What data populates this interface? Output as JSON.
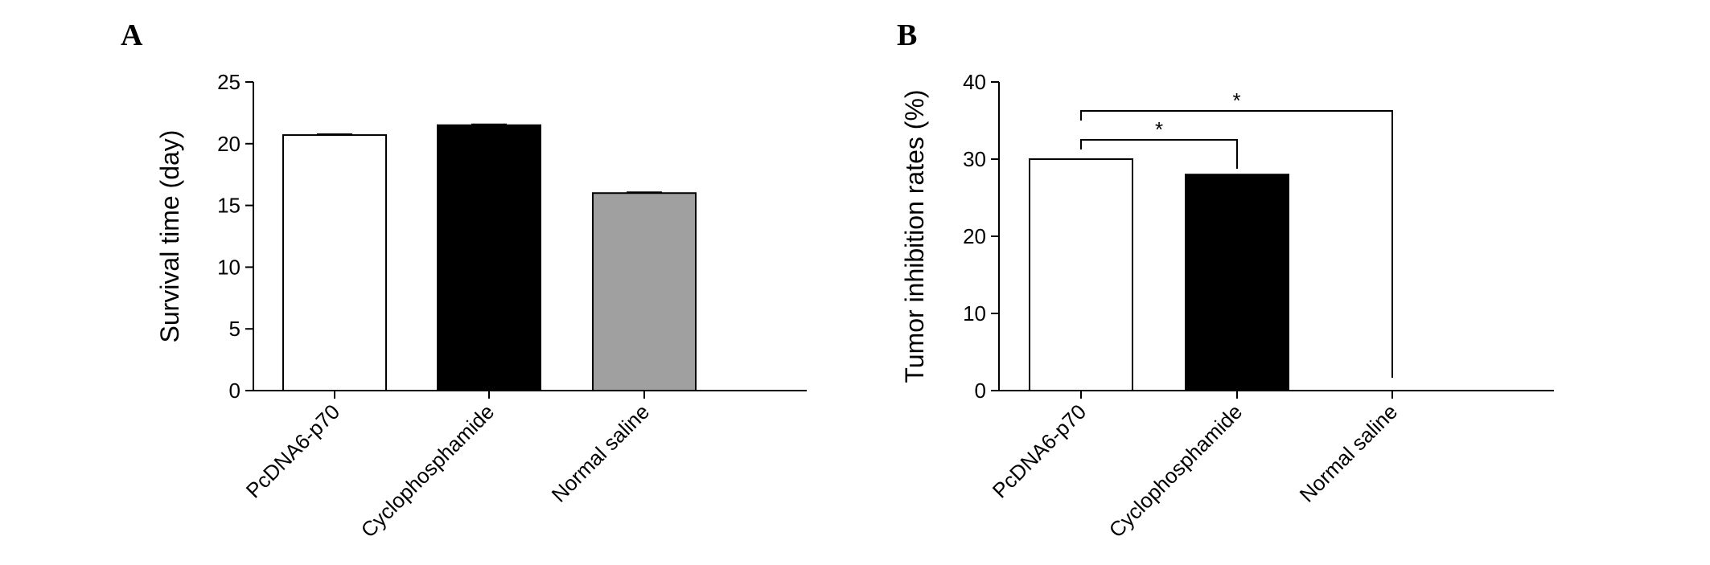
{
  "chart_data": [
    {
      "panel_label": "A",
      "type": "bar",
      "categories": [
        "PcDNA6-p70",
        "Cyclophosphamide",
        "Normal saline"
      ],
      "values": [
        20.7,
        21.5,
        16.0
      ],
      "colors": [
        "#ffffff",
        "#000000",
        "#a0a0a0"
      ],
      "ylabel": "Survival time (day)",
      "xlabel": "",
      "ylim": [
        0,
        25
      ],
      "yticks": [
        "0",
        "5",
        "10",
        "15",
        "20",
        "25"
      ],
      "grid": false
    },
    {
      "panel_label": "B",
      "type": "bar",
      "categories": [
        "PcDNA6-p70",
        "Cyclophosphamide",
        "Normal saline"
      ],
      "values": [
        30.0,
        28.0,
        0
      ],
      "colors": [
        "#ffffff",
        "#000000",
        "#ffffff"
      ],
      "ylabel": "Tumor inhibition rates (%)",
      "xlabel": "",
      "ylim": [
        0,
        40
      ],
      "yticks": [
        "0",
        "10",
        "20",
        "30",
        "40"
      ],
      "grid": false,
      "significance": [
        {
          "from": "PcDNA6-p70",
          "to": "Cyclophosphamide",
          "label": "*"
        },
        {
          "from": "PcDNA6-p70",
          "to": "Normal saline",
          "label": "*"
        }
      ]
    }
  ]
}
